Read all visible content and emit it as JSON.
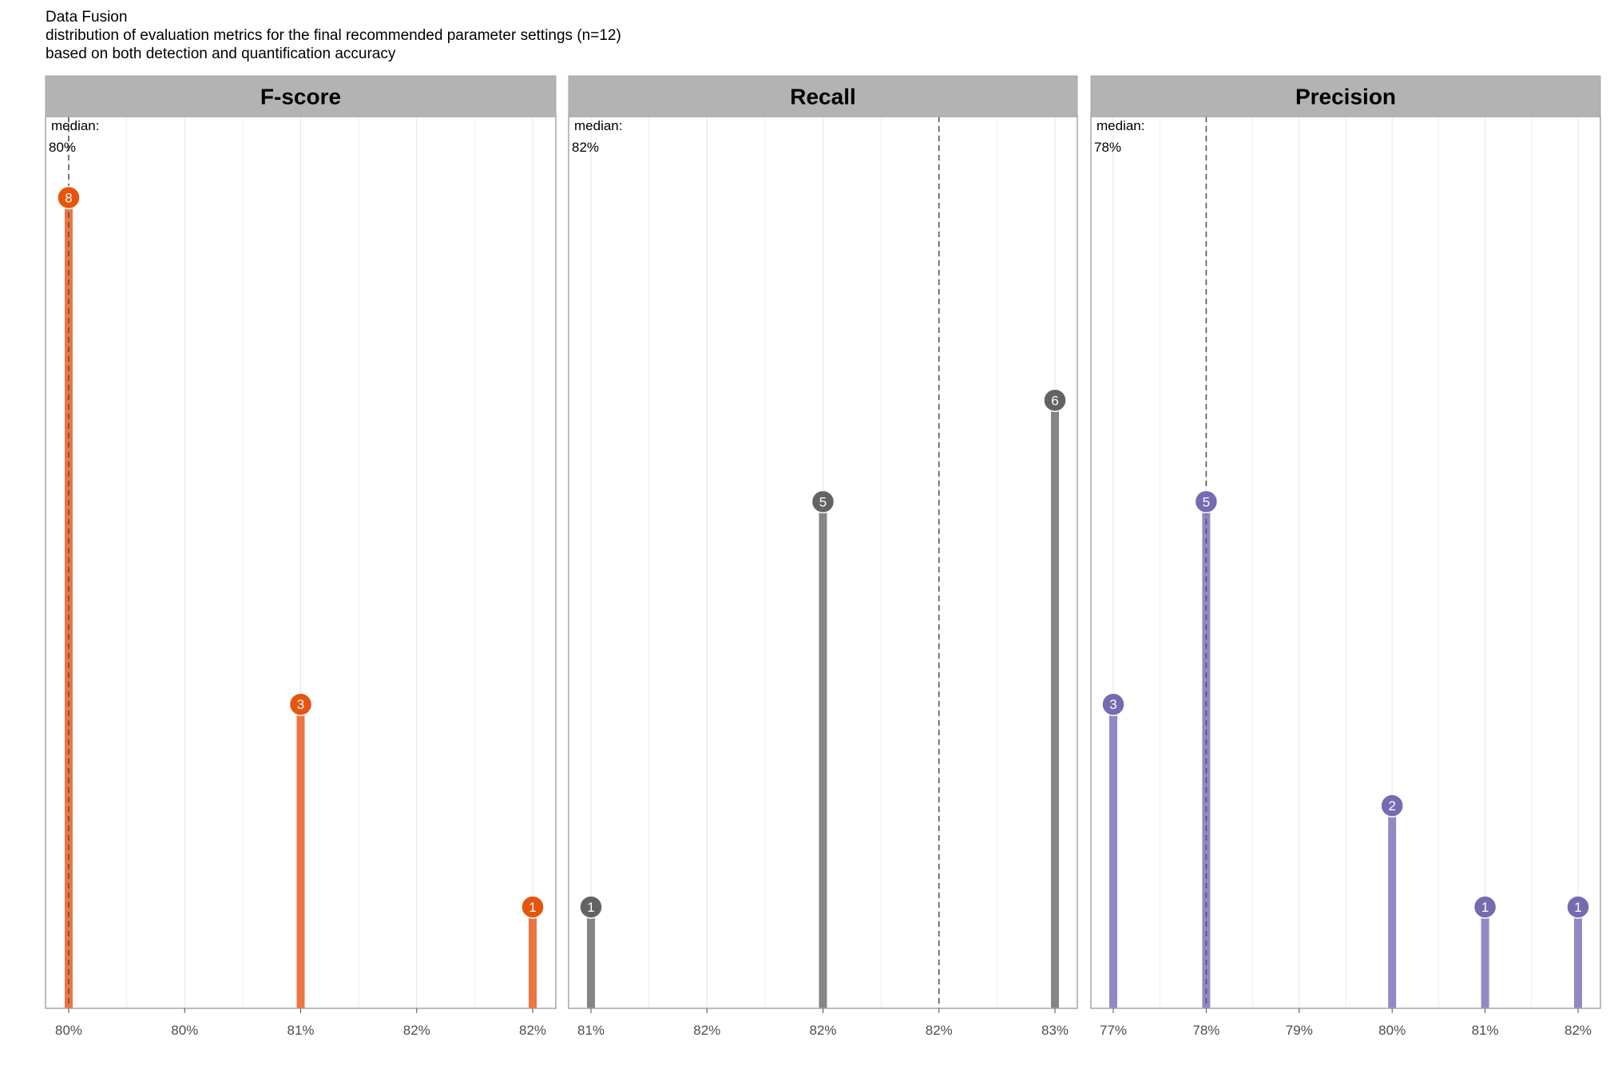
{
  "titles": {
    "title": "Data Fusion",
    "subtitle": "distribution of evaluation metrics for the final recommended parameter settings (n=12)",
    "caption": "based on both detection and quantification accuracy"
  },
  "chart_data": [
    {
      "type": "lollipop",
      "title": "F-score",
      "color_point": "#e6550d",
      "color_line": "#ec7540",
      "x_ticks": [
        "80%",
        "80%",
        "81%",
        "82%",
        "82%"
      ],
      "xlim_tick_index": [
        0,
        4
      ],
      "median_label": "median:",
      "median_value": "80%",
      "median_tick": 0,
      "points": [
        {
          "tick": 0,
          "count": 8,
          "label": "8"
        },
        {
          "tick": 2,
          "count": 3,
          "label": "3"
        },
        {
          "tick": 4,
          "count": 1,
          "label": "1"
        }
      ],
      "ylim": [
        0,
        8.8
      ]
    },
    {
      "type": "lollipop",
      "title": "Recall",
      "color_point": "#636363",
      "color_line": "#858585",
      "x_ticks": [
        "81%",
        "82%",
        "82%",
        "82%",
        "83%"
      ],
      "xlim_tick_index": [
        0,
        4
      ],
      "median_label": "median:",
      "median_value": "82%",
      "median_tick": 3,
      "points": [
        {
          "tick": 0,
          "count": 1,
          "label": "1"
        },
        {
          "tick": 2,
          "count": 5,
          "label": "5"
        },
        {
          "tick": 4,
          "count": 6,
          "label": "6"
        }
      ],
      "ylim": [
        0,
        8.8
      ]
    },
    {
      "type": "lollipop",
      "title": "Precision",
      "color_point": "#756bb1",
      "color_line": "#9188c4",
      "x_ticks": [
        "77%",
        "78%",
        "79%",
        "80%",
        "81%",
        "82%"
      ],
      "xlim_tick_index": [
        0,
        5
      ],
      "median_label": "median:",
      "median_value": "78%",
      "median_tick": 1,
      "points": [
        {
          "tick": 0,
          "count": 3,
          "label": "3"
        },
        {
          "tick": 1,
          "count": 5,
          "label": "5"
        },
        {
          "tick": 3,
          "count": 2,
          "label": "2"
        },
        {
          "tick": 4,
          "count": 1,
          "label": "1"
        },
        {
          "tick": 5,
          "count": 1,
          "label": "1"
        }
      ],
      "ylim": [
        0,
        8.8
      ]
    }
  ]
}
